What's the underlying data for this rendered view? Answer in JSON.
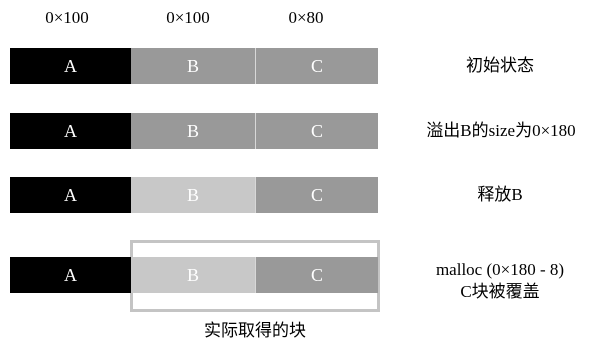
{
  "sizes": [
    "0×100",
    "0×100",
    "0×80"
  ],
  "rows": [
    {
      "chunks": [
        "A",
        "B",
        "C"
      ],
      "caption_lines": [
        "初始状态"
      ],
      "b_freed": false
    },
    {
      "chunks": [
        "A",
        "B",
        "C"
      ],
      "caption_lines": [
        "溢出B的size为0×180"
      ],
      "b_freed": false
    },
    {
      "chunks": [
        "A",
        "B",
        "C"
      ],
      "caption_lines": [
        "释放B"
      ],
      "b_freed": true
    },
    {
      "chunks": [
        "A",
        "B",
        "C"
      ],
      "caption_lines": [
        "malloc (0×180 - 8)",
        "C块被覆盖"
      ],
      "b_freed": true
    }
  ],
  "acquired_label": "实际取得的块",
  "colors": {
    "chunk_a": "#000000",
    "chunk_used": "#999999",
    "chunk_freed": "#c8c8c8",
    "highlight_border": "#c4c4c4"
  }
}
